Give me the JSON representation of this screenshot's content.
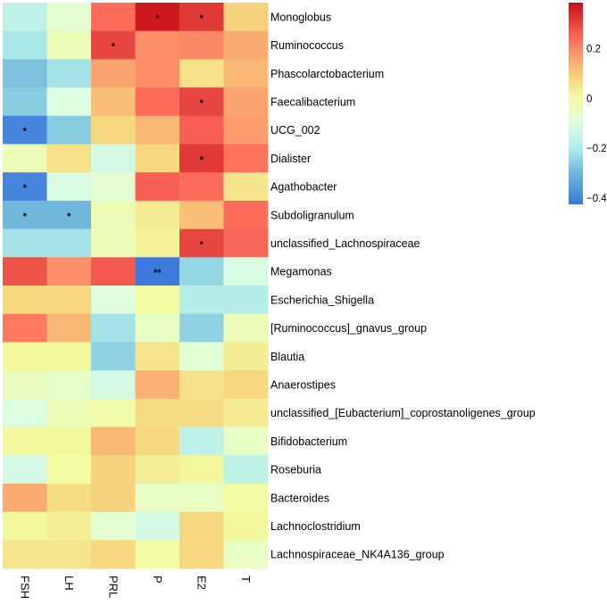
{
  "chart_data": {
    "type": "heatmap",
    "title": "",
    "columns": [
      "FSH",
      "LH",
      "PRL",
      "P",
      "E2",
      "T"
    ],
    "rows": [
      "Monoglobus",
      "Ruminococcus",
      "Phascolarctobacterium",
      "Faecalibacterium",
      "UCG_002",
      "Dialister",
      "Agathobacter",
      "Subdoligranulum",
      "unclassified_Lachnospiraceae",
      "Megamonas",
      "Escherichia_Shigella",
      "[Ruminococcus]_gnavus_group",
      "Blautia",
      "Anaerostipes",
      "unclassified_[Eubacterium]_coprostanoligenes_group",
      "Bifidobacterium",
      "Roseburia",
      "Bacteroides",
      "Lachnoclostridium",
      "Lachnospiraceae_NK4A136_group"
    ],
    "values": [
      [
        -0.17,
        -0.07,
        0.24,
        0.37,
        0.32,
        0.09
      ],
      [
        -0.21,
        -0.03,
        0.3,
        0.19,
        0.2,
        0.15
      ],
      [
        -0.28,
        -0.22,
        0.16,
        0.19,
        0.06,
        0.13
      ],
      [
        -0.26,
        -0.1,
        0.12,
        0.24,
        0.3,
        0.16
      ],
      [
        -0.4,
        -0.26,
        0.08,
        0.13,
        0.26,
        0.17
      ],
      [
        -0.03,
        0.06,
        -0.12,
        0.08,
        0.32,
        0.23
      ],
      [
        -0.4,
        -0.11,
        -0.07,
        0.26,
        0.24,
        0.05
      ],
      [
        -0.3,
        -0.3,
        -0.03,
        0.04,
        0.12,
        0.24
      ],
      [
        -0.22,
        -0.22,
        -0.03,
        0.02,
        0.3,
        0.25
      ],
      [
        0.28,
        0.19,
        0.27,
        -0.42,
        -0.24,
        -0.11
      ],
      [
        0.08,
        0.08,
        -0.09,
        0.0,
        -0.19,
        -0.19
      ],
      [
        0.22,
        0.13,
        -0.22,
        -0.05,
        -0.25,
        -0.03
      ],
      [
        0.01,
        0.01,
        -0.25,
        0.05,
        -0.08,
        0.04
      ],
      [
        -0.04,
        -0.06,
        -0.12,
        0.14,
        0.06,
        0.08
      ],
      [
        -0.1,
        -0.03,
        -0.01,
        0.07,
        0.07,
        0.04
      ],
      [
        0.01,
        0.01,
        0.13,
        0.08,
        -0.17,
        -0.05
      ],
      [
        -0.12,
        0.0,
        0.09,
        0.03,
        0.01,
        -0.17
      ],
      [
        0.15,
        0.07,
        0.09,
        -0.05,
        -0.05,
        0.0
      ],
      [
        0.01,
        0.03,
        -0.07,
        -0.12,
        0.08,
        0.01
      ],
      [
        0.05,
        0.05,
        0.08,
        0.0,
        0.08,
        -0.05
      ]
    ],
    "significance": [
      [
        "",
        "",
        "",
        "*",
        "*",
        ""
      ],
      [
        "",
        "",
        "*",
        "",
        "",
        ""
      ],
      [
        "",
        "",
        "",
        "",
        "",
        ""
      ],
      [
        "",
        "",
        "",
        "",
        "*",
        ""
      ],
      [
        "*",
        "",
        "",
        "",
        "",
        ""
      ],
      [
        "",
        "",
        "",
        "",
        "*",
        ""
      ],
      [
        "*",
        "",
        "",
        "",
        "",
        ""
      ],
      [
        "*",
        "*",
        "",
        "",
        "",
        ""
      ],
      [
        "",
        "",
        "",
        "",
        "*",
        ""
      ],
      [
        "",
        "",
        "",
        "**",
        "",
        ""
      ],
      [
        "",
        "",
        "",
        "",
        "",
        ""
      ],
      [
        "",
        "",
        "",
        "",
        "",
        ""
      ],
      [
        "",
        "",
        "",
        "",
        "",
        ""
      ],
      [
        "",
        "",
        "",
        "",
        "",
        ""
      ],
      [
        "",
        "",
        "",
        "",
        "",
        ""
      ],
      [
        "",
        "",
        "",
        "",
        "",
        ""
      ],
      [
        "",
        "",
        "",
        "",
        "",
        ""
      ],
      [
        "",
        "",
        "",
        "",
        "",
        ""
      ],
      [
        "",
        "",
        "",
        "",
        "",
        ""
      ],
      [
        "",
        "",
        "",
        "",
        "",
        ""
      ]
    ],
    "colorbar": {
      "range": [
        -0.425,
        0.385
      ],
      "ticks": [
        0.2,
        0,
        -0.2,
        -0.4
      ],
      "tick_labels": [
        "0.2",
        "0",
        "−0.2",
        "−0.4"
      ],
      "colors": [
        {
          "v": -0.425,
          "c": "#3a78dd"
        },
        {
          "v": -0.3,
          "c": "#6fb8dc"
        },
        {
          "v": -0.2,
          "c": "#b0ece9"
        },
        {
          "v": -0.1,
          "c": "#ddfde3"
        },
        {
          "v": 0.0,
          "c": "#f3fca4"
        },
        {
          "v": 0.08,
          "c": "#f6d97f"
        },
        {
          "v": 0.16,
          "c": "#fba46f"
        },
        {
          "v": 0.24,
          "c": "#fe6c5c"
        },
        {
          "v": 0.385,
          "c": "#c80f18"
        }
      ]
    },
    "legend_position": "top-right"
  }
}
